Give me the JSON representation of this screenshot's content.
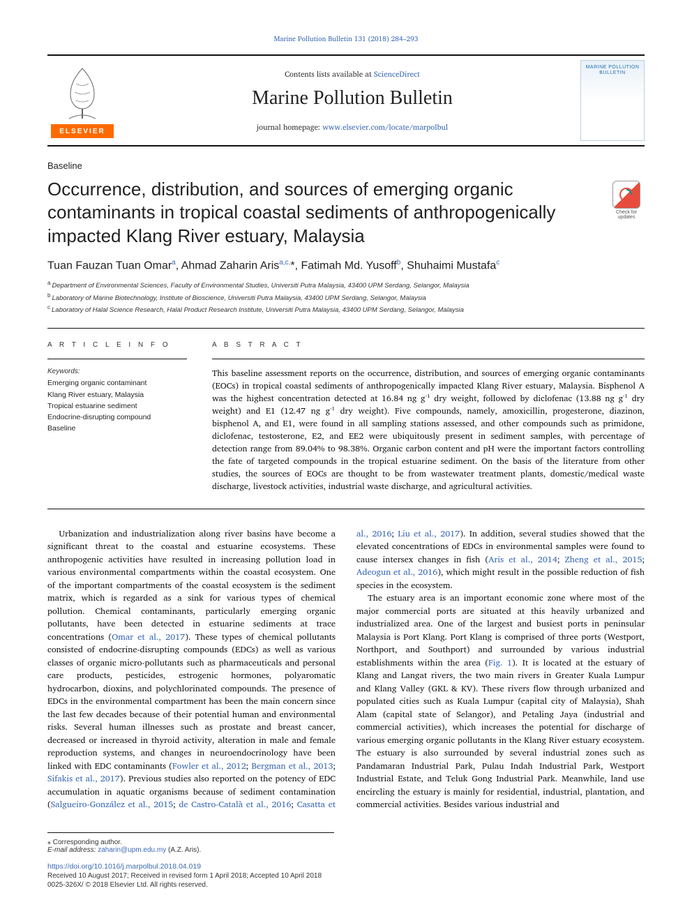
{
  "running_head": {
    "prefix": "",
    "text": "Marine Pollution Bulletin 131 (2018) 284–293"
  },
  "top_bar": {
    "contents_prefix": "Contents lists available at ",
    "contents_link": "ScienceDirect",
    "journal_name": "Marine Pollution Bulletin",
    "homepage_prefix": "journal homepage: ",
    "homepage_link": "www.elsevier.com/locate/marpolbul",
    "elsevier_mark": "ELSEVIER",
    "cover_caption": "MARINE POLLUTION BULLETIN"
  },
  "article_type": "Baseline",
  "title": "Occurrence, distribution, and sources of emerging organic contaminants in tropical coastal sediments of anthropogenically impacted Klang River estuary, Malaysia",
  "check_for_updates": "Check for updates",
  "authors_html": "Tuan Fauzan Tuan Omar<sup>a</sup>, Ahmad Zaharin Aris<sup>a,c,</sup>*, Fatimah Md. Yusoff<sup>b</sup>, Shuhaimi Mustafa<sup>c</sup>",
  "affiliations": [
    {
      "tag": "a",
      "text": "Department of Environmental Sciences, Faculty of Environmental Studies, Universiti Putra Malaysia, 43400 UPM Serdang, Selangor, Malaysia"
    },
    {
      "tag": "b",
      "text": "Laboratory of Marine Biotechnology, Institute of Bioscience, Universiti Putra Malaysia, 43400 UPM Serdang, Selangor, Malaysia"
    },
    {
      "tag": "c",
      "text": "Laboratory of Halal Science Research, Halal Product Research Institute, Universiti Putra Malaysia, 43400 UPM Serdang, Selangor, Malaysia"
    }
  ],
  "info_heading": "A R T I C L E  I N F O",
  "abs_heading": "A B S T R A C T",
  "keywords_label": "Keywords:",
  "keywords": [
    "Emerging organic contaminant",
    "Klang River estuary, Malaysia",
    "Tropical estuarine sediment",
    "Endocrine-disrupting compound",
    "Baseline"
  ],
  "abstract": "This baseline assessment reports on the occurrence, distribution, and sources of emerging organic contaminants (EOCs) in tropical coastal sediments of anthropogenically impacted Klang River estuary, Malaysia. Bisphenol A was the highest concentration detected at 16.84 ng g⁻¹ dry weight, followed by diclofenac (13.88 ng g⁻¹ dry weight) and E1 (12.47 ng g⁻¹ dry weight). Five compounds, namely, amoxicillin, progesterone, diazinon, bisphenol A, and E1, were found in all sampling stations assessed, and other compounds such as primidone, diclofenac, testosterone, E2, and EE2 were ubiquitously present in sediment samples, with percentage of detection range from 89.04% to 98.38%. Organic carbon content and pH were the important factors controlling the fate of targeted compounds in the tropical estuarine sediment. On the basis of the literature from other studies, the sources of EOCs are thought to be from wastewater treatment plants, domestic/medical waste discharge, livestock activities, industrial waste discharge, and agricultural activities.",
  "body": {
    "p1": "Urbanization and industrialization along river basins have become a significant threat to the coastal and estuarine ecosystems. These anthropogenic activities have resulted in increasing pollution load in various environmental compartments within the coastal ecosystem. One of the important compartments of the coastal ecosystem is the sediment matrix, which is regarded as a sink for various types of chemical pollution. Chemical contaminants, particularly emerging organic pollutants, have been detected in estuarine sediments at trace concentrations (",
    "p1_link1": "Omar et al., 2017",
    "p1b": "). These types of chemical pollutants consisted of endocrine-disrupting compounds (EDCs) as well as various classes of organic micro-pollutants such as pharmaceuticals and personal care products, pesticides, estrogenic hormones, polyaromatic hydrocarbon, dioxins, and polychlorinated compounds. The presence of EDCs in the environmental compartment has been the main concern since the last few decades because of their potential human and environmental risks. Several human illnesses such as prostate and breast cancer, decreased or increased in thyroid activity, alteration in male and female reproduction systems, and changes in neuroendocrinology have been linked with EDC contaminants (",
    "p1_link2": "Fowler et al., 2012",
    "p1_link3": "Bergman et al., 2013",
    "p1_link4": "Sifakis et al., 2017",
    "p1c": "). Previous studies also reported on the potency of EDC accumulation in aquatic organisms because of sediment contamination (",
    "p1_link5": "Salgueiro-González et al., 2015",
    "p1_link6": "de Castro-Català et al.,",
    "p2_link1": "2016",
    "p2_link2": "Casatta et al., 2016",
    "p2_link3": "Liu et al., 2017",
    "p2a": "). In addition, several studies showed that the elevated concentrations of EDCs in environmental samples were found to cause intersex changes in fish (",
    "p2_link4": "Aris et al., 2014",
    "p2_link5": "Zheng et al., 2015",
    "p2_link6": "Adeogun et al., 2016",
    "p2b": "), which might result in the possible reduction of fish species in the ecosystem.",
    "p3a": "The estuary area is an important economic zone where most of the major commercial ports are situated at this heavily urbanized and industrialized area. One of the largest and busiest ports in peninsular Malaysia is Port Klang. Port Klang is comprised of three ports (Westport, Northport, and Southport) and surrounded by various industrial establishments within the area (",
    "p3_link1": "Fig. 1",
    "p3b": "). It is located at the estuary of Klang and Langat rivers, the two main rivers in Greater Kuala Lumpur and Klang Valley (GKL & KV). These rivers flow through urbanized and populated cities such as Kuala Lumpur (capital city of Malaysia), Shah Alam (capital state of Selangor), and Petaling Jaya (industrial and commercial activities), which increases the potential for discharge of various emerging organic pollutants in the Klang River estuary ecosystem. The estuary is also surrounded by several industrial zones such as Pandamaran Industrial Park, Pulau Indah Industrial Park, Westport Industrial Estate, and Teluk Gong Industrial Park. Meanwhile, land use encircling the estuary is mainly for residential, industrial, plantation, and commercial activities. Besides various industrial and"
  },
  "footnotes": {
    "corresponding": "⁎ Corresponding author.",
    "email_label": "E-mail address:",
    "email": "zaharin@upm.edu.my",
    "email_attrib": "(A.Z. Aris)."
  },
  "doi": "https://doi.org/10.1016/j.marpolbul.2018.04.019",
  "history": "Received 10 August 2017; Received in revised form 1 April 2018; Accepted 10 April 2018",
  "copyright": "0025-326X/ © 2018 Elsevier Ltd. All rights reserved.",
  "colors": {
    "link": "#3b6ab5",
    "elsevier_orange": "#ff6a00",
    "text": "#1a1a1a"
  },
  "typography": {
    "body_pt": 12.5,
    "title_pt": 26,
    "journal_pt": 28,
    "authors_pt": 16,
    "abstract_pt": 12.3,
    "footnote_pt": 10
  }
}
